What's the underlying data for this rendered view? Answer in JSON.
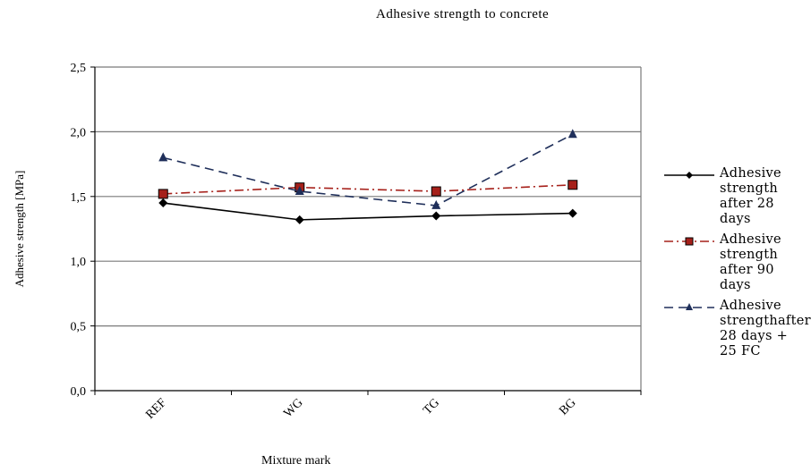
{
  "chart_data": {
    "type": "line",
    "title": "Adhesive  strength to concrete",
    "xlabel": "Mixture mark",
    "ylabel": "Adhesive strength [MPa]",
    "categories": [
      "REF",
      "WG",
      "TG",
      "BG"
    ],
    "ylim": [
      0,
      2.5
    ],
    "yticks": [
      "0,0",
      "0,5",
      "1,0",
      "1,5",
      "2,0",
      "2,5"
    ],
    "grid": true,
    "legend_position": "right",
    "series": [
      {
        "name": "Adhesive strength after 28 days",
        "values": [
          1.45,
          1.32,
          1.35,
          1.37
        ],
        "color": "#000000",
        "marker": "diamond",
        "dash": "solid"
      },
      {
        "name": "Adhesive strength after 90 days",
        "values": [
          1.52,
          1.57,
          1.54,
          1.59
        ],
        "color": "#a6201a",
        "marker": "square",
        "dash": "dashdot"
      },
      {
        "name": "Adhesive strengthafter 28 days + 25 FC",
        "values": [
          1.8,
          1.54,
          1.43,
          1.98
        ],
        "color": "#1f2f5a",
        "marker": "triangle",
        "dash": "dashed"
      }
    ]
  }
}
